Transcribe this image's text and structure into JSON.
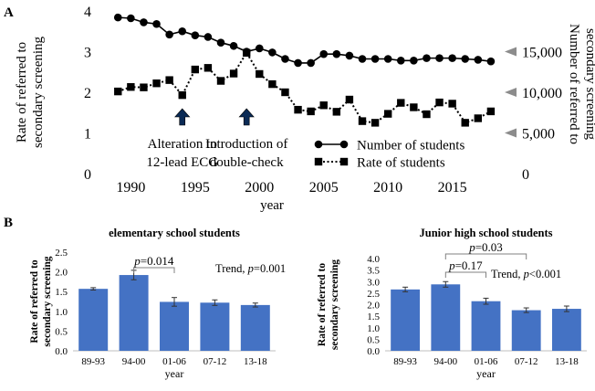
{
  "panel_labels": {
    "a": "A",
    "b": "B"
  },
  "chart_data": [
    {
      "type": "line",
      "panel": "A",
      "title": "",
      "xlabel": "year",
      "ylabel_left": [
        "Rate of referred to",
        "secondary screening"
      ],
      "ylabel_right": [
        "Number of referred to",
        "secondary screening"
      ],
      "x": [
        1989,
        1990,
        1991,
        1992,
        1993,
        1994,
        1995,
        1996,
        1997,
        1998,
        1999,
        2000,
        2001,
        2002,
        2003,
        2004,
        2005,
        2006,
        2007,
        2008,
        2009,
        2010,
        2011,
        2012,
        2013,
        2014,
        2015,
        2016,
        2017,
        2018
      ],
      "xlim": [
        1988.2,
        2019
      ],
      "xticks": [
        "1990",
        "1995",
        "2000",
        "2005",
        "2010",
        "2015"
      ],
      "ylim_left": [
        0,
        4
      ],
      "yticks_left": [
        "0",
        "1",
        "2",
        "3",
        "4"
      ],
      "ylim_right": [
        0,
        20000
      ],
      "yticks_right": [
        "0",
        "5,000",
        "10,000",
        "15,000"
      ],
      "series": [
        {
          "name": "Number of  students",
          "axis": "right",
          "marker": "circle",
          "linestyle": "solid",
          "values": [
            19200,
            19100,
            18600,
            18400,
            17100,
            17500,
            17000,
            16800,
            16100,
            15700,
            15000,
            15400,
            14900,
            14100,
            13600,
            13600,
            14700,
            14700,
            14500,
            14100,
            14100,
            14100,
            13900,
            13900,
            14200,
            14200,
            14200,
            14100,
            14000,
            13800
          ]
        },
        {
          "name": "Rate of students",
          "axis": "left",
          "marker": "square",
          "linestyle": "dotted",
          "values": [
            2.02,
            2.13,
            2.12,
            2.22,
            2.3,
            1.93,
            2.56,
            2.6,
            2.28,
            2.46,
            2.97,
            2.45,
            2.2,
            2.0,
            1.57,
            1.53,
            1.68,
            1.52,
            1.82,
            1.29,
            1.25,
            1.47,
            1.74,
            1.63,
            1.46,
            1.75,
            1.72,
            1.25,
            1.36,
            1.53
          ]
        }
      ],
      "annotations": [
        {
          "year": 1994,
          "text": [
            "Alteration to",
            "12-lead ECG"
          ]
        },
        {
          "year": 1999,
          "text": [
            "Introduction of",
            "double-check"
          ]
        }
      ],
      "right_arrow_values": [
        15000,
        10000,
        5000
      ],
      "arrow_color": "#0a2a55",
      "arrowhead_color": "#8c8c8c"
    },
    {
      "type": "bar",
      "panel": "B-left",
      "title": "elementary school students",
      "xlabel": "year",
      "ylabel": [
        "Rate of referred to",
        "secondary screening"
      ],
      "categories": [
        "89-93",
        "94-00",
        "01-06",
        "07-12",
        "13-18"
      ],
      "values": [
        1.57,
        1.92,
        1.24,
        1.22,
        1.16
      ],
      "errors": [
        0.03,
        0.12,
        0.11,
        0.07,
        0.05
      ],
      "ylim": [
        0,
        2.5
      ],
      "yticks": [
        "0.0",
        "0.5",
        "1.0",
        "1.5",
        "2.0",
        "2.5"
      ],
      "bar_color": "#4472c4",
      "brackets": [
        {
          "from": 1,
          "to": 2,
          "label_prefix": "p",
          "label_value": "=0.014"
        }
      ],
      "trend_label": "Trend, ",
      "trend_p": "p",
      "trend_value": "=0.001"
    },
    {
      "type": "bar",
      "panel": "B-right",
      "title": "Junior high school students",
      "xlabel": "year",
      "ylabel": [
        "Rate of referred to",
        "secondary screening"
      ],
      "categories": [
        "89-93",
        "94-00",
        "01-06",
        "07-12",
        "13-18"
      ],
      "values": [
        2.66,
        2.88,
        2.15,
        1.76,
        1.82
      ],
      "errors": [
        0.1,
        0.12,
        0.13,
        0.1,
        0.12
      ],
      "ylim": [
        0,
        4
      ],
      "yticks": [
        "0.0",
        "0.5",
        "1.0",
        "1.5",
        "2.0",
        "2.5",
        "3.0",
        "3.5",
        "4.0"
      ],
      "bar_color": "#4472c4",
      "brackets": [
        {
          "from": 1,
          "to": 3,
          "label_prefix": "p",
          "label_value": "=0.03"
        },
        {
          "from": 1,
          "to": 2,
          "label_prefix": "p",
          "label_value": "=0.17"
        }
      ],
      "trend_label": "Trend, ",
      "trend_p": "p",
      "trend_value": "<0.001"
    }
  ]
}
